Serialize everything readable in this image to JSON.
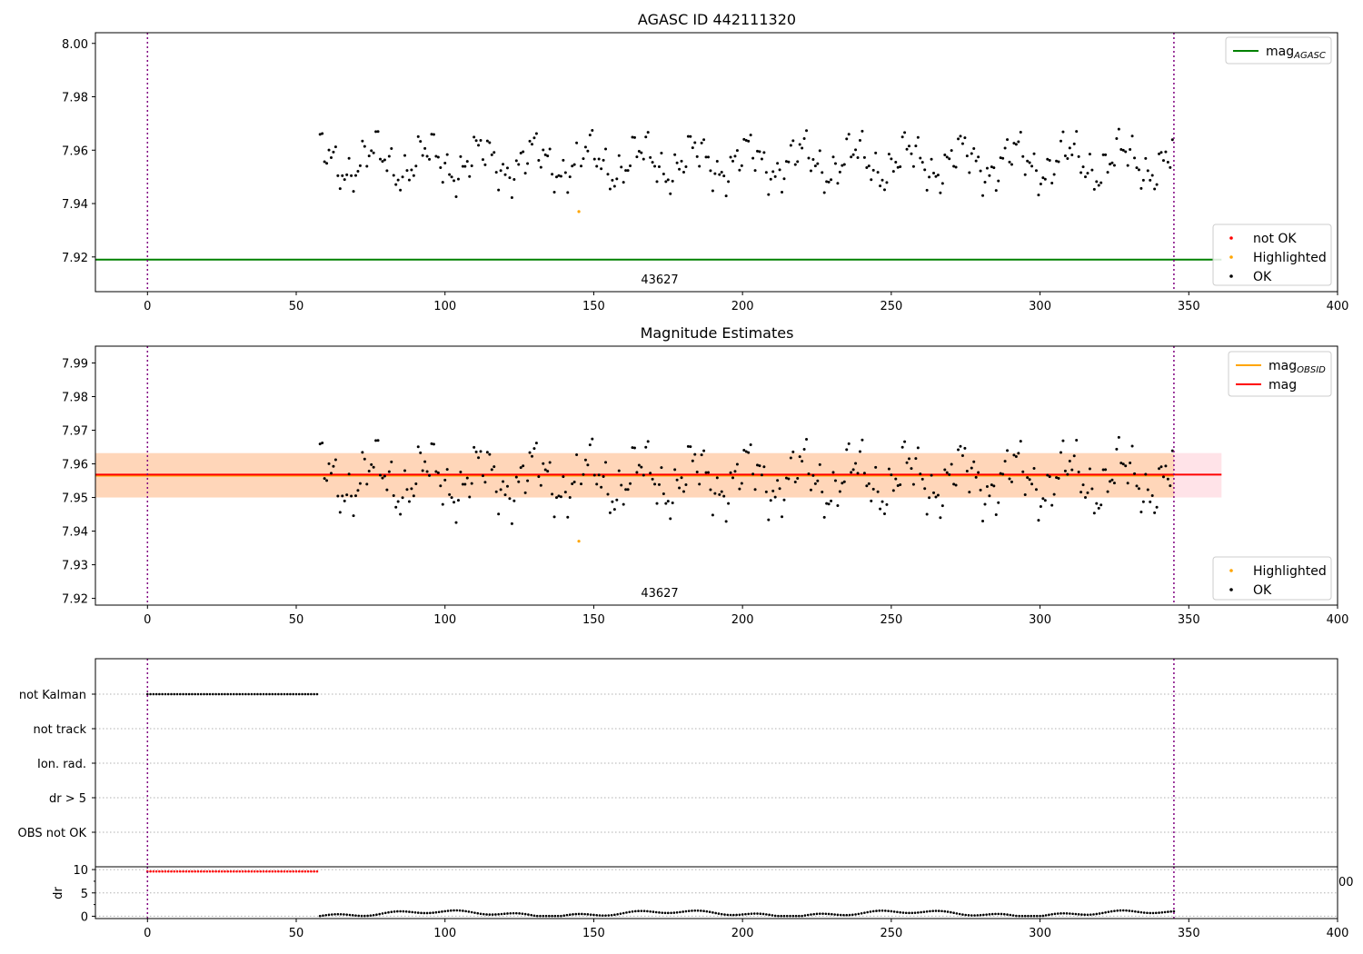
{
  "chart_data": [
    {
      "type": "scatter",
      "title": "AGASC ID 442111320",
      "xlim": [
        -17.5,
        400
      ],
      "ylim": [
        7.907,
        8.004
      ],
      "xticks": [
        0,
        50,
        100,
        150,
        200,
        250,
        300,
        350,
        400
      ],
      "yticks": [
        "8.00",
        "7.98",
        "7.96",
        "7.94",
        "7.92"
      ],
      "grid": false,
      "obsid_label": "43627",
      "vlines": [
        0,
        345
      ],
      "hlines": [
        {
          "name": "mag_AGASC",
          "y": 7.919,
          "x": [
            -17.5,
            361
          ],
          "color": "#008000"
        }
      ],
      "highlighted_points": [
        {
          "x": 145,
          "y": 7.937
        }
      ],
      "legends": [
        {
          "position": "upper right",
          "entries": [
            {
              "label": "mag",
              "sub": "AGASC",
              "kind": "line",
              "color": "#008000"
            }
          ]
        },
        {
          "position": "lower right",
          "entries": [
            {
              "label": "not OK",
              "kind": "dot",
              "color": "#ff0000"
            },
            {
              "label": "Highlighted",
              "kind": "dot",
              "color": "#ffa500"
            },
            {
              "label": "OK",
              "kind": "dot",
              "color": "#000000"
            }
          ]
        }
      ]
    },
    {
      "type": "scatter",
      "title": "Magnitude Estimates",
      "xlim": [
        -17.5,
        400
      ],
      "ylim": [
        7.918,
        7.995
      ],
      "xticks": [
        0,
        50,
        100,
        150,
        200,
        250,
        300,
        350,
        400
      ],
      "yticks": [
        "7.99",
        "7.98",
        "7.97",
        "7.96",
        "7.95",
        "7.94",
        "7.93",
        "7.92"
      ],
      "grid": false,
      "obsid_label": "43627",
      "vlines": [
        0,
        345
      ],
      "hlines": [
        {
          "name": "mag_OBSID",
          "y": 7.9565,
          "x": [
            -17.5,
            345
          ],
          "color": "#ffa500"
        },
        {
          "name": "mag",
          "y": 7.9568,
          "x": [
            -17.5,
            361
          ],
          "color": "#ff0000"
        }
      ],
      "bands": [
        {
          "name": "mag band",
          "y": [
            7.95,
            7.9632
          ],
          "x": [
            -17.5,
            361
          ],
          "color": "#ffc0cb"
        },
        {
          "name": "mag_OBSID band",
          "y": [
            7.95,
            7.9632
          ],
          "x": [
            -17.5,
            345
          ],
          "color": "#ffa500"
        }
      ],
      "highlighted_points": [
        {
          "x": 145,
          "y": 7.937
        }
      ],
      "legends": [
        {
          "position": "upper right",
          "entries": [
            {
              "label": "mag",
              "sub": "OBSID",
              "kind": "line",
              "color": "#ffa500"
            },
            {
              "label": "mag",
              "sub": "",
              "kind": "line",
              "color": "#ff0000"
            }
          ]
        },
        {
          "position": "lower right",
          "entries": [
            {
              "label": "Highlighted",
              "kind": "dot",
              "color": "#ffa500"
            },
            {
              "label": "OK",
              "kind": "dot",
              "color": "#000000"
            }
          ]
        }
      ]
    },
    {
      "type": "scatter",
      "title": "",
      "xlim": [
        -17.5,
        400
      ],
      "categories": [
        "not Kalman",
        "not track",
        "Ion. rad.",
        "dr > 5",
        "OBS not OK"
      ],
      "flag_points": {
        "category": "not Kalman",
        "x": [
          0,
          57
        ]
      },
      "grid": "horizontal dotted",
      "vlines": [
        0,
        345
      ]
    },
    {
      "type": "scatter",
      "title": "",
      "ylabel": "dr",
      "xlim": [
        -17.5,
        400
      ],
      "ylim": [
        -0.5,
        10.6
      ],
      "xticks": [
        0,
        50,
        100,
        150,
        200,
        250,
        300,
        350,
        400
      ],
      "yticks": [
        10,
        5,
        0
      ],
      "clipped_tick_label": "00",
      "flagged_series": {
        "x": [
          0,
          57
        ],
        "y": 9.6,
        "color": "#ff0000"
      },
      "vlines": [
        0,
        345
      ]
    }
  ]
}
